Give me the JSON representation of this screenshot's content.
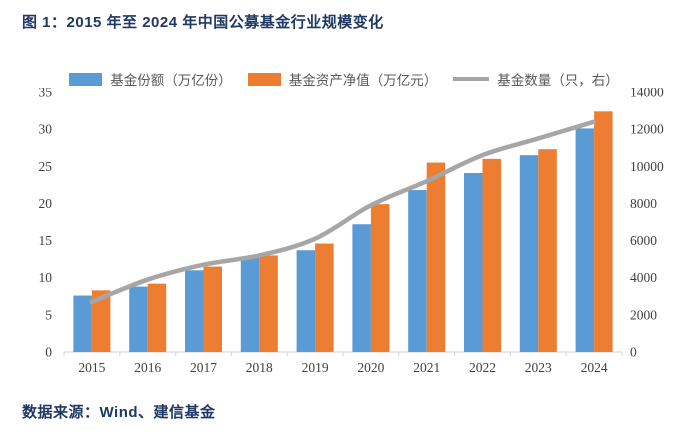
{
  "page": {
    "title": "图 1：2015 年至 2024 年中国公募基金行业规模变化",
    "source": "数据来源：Wind、建信基金"
  },
  "colors": {
    "title_text": "#1F3864",
    "source_text": "#1F3864",
    "bar_blue": "#5B9BD5",
    "bar_orange": "#ED7D31",
    "line_gray": "#A6A6A6",
    "axis_line": "#D9D9D9",
    "axis_text": "#404040",
    "legend_text": "#595959"
  },
  "chart_data": {
    "type": "bar",
    "title": "图 1：2015 年至 2024 年中国公募基金行业规模变化",
    "categories": [
      "2015",
      "2016",
      "2017",
      "2018",
      "2019",
      "2020",
      "2021",
      "2022",
      "2023",
      "2024"
    ],
    "series": [
      {
        "name": "基金份额（万亿份）",
        "type": "bar",
        "axis": "left",
        "color": "#5B9BD5",
        "values": [
          7.6,
          8.8,
          11.0,
          12.8,
          13.7,
          17.2,
          21.8,
          24.1,
          26.5,
          30.1
        ]
      },
      {
        "name": "基金资产净值（万亿元）",
        "type": "bar",
        "axis": "left",
        "color": "#ED7D31",
        "values": [
          8.3,
          9.2,
          11.5,
          13.0,
          14.6,
          19.9,
          25.5,
          26.0,
          27.3,
          32.4
        ]
      },
      {
        "name": "基金数量（只，右）",
        "type": "line",
        "axis": "right",
        "color": "#A6A6A6",
        "values": [
          2700,
          3900,
          4700,
          5200,
          6100,
          7900,
          9200,
          10600,
          11500,
          12400
        ]
      }
    ],
    "left_axis": {
      "min": 0,
      "max": 35,
      "step": 5,
      "ticks": [
        0,
        5,
        10,
        15,
        20,
        25,
        30,
        35
      ]
    },
    "right_axis": {
      "min": 0,
      "max": 14000,
      "step": 2000,
      "ticks": [
        0,
        2000,
        4000,
        6000,
        8000,
        10000,
        12000,
        14000
      ]
    },
    "grid": false,
    "legend_position": "top",
    "line_smooth": true
  }
}
